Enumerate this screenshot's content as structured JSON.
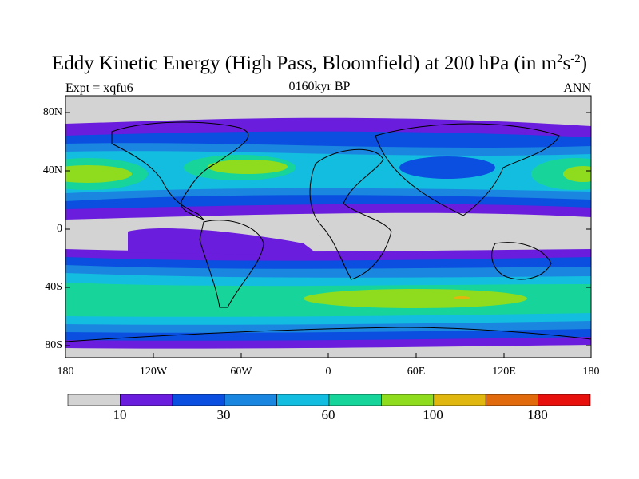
{
  "title": {
    "main": "Eddy Kinetic Energy (High Pass, Bloomfield) at 200 hPa (in m",
    "sup1": "2",
    "mid": "s",
    "sup2": "-2",
    "close": ")"
  },
  "subtitle": "0160kyr BP",
  "experiment": "Expt = xqfu6",
  "season": "ANN",
  "axes": {
    "y_ticks": [
      "80N",
      "40N",
      "0",
      "40S",
      "80S"
    ],
    "x_ticks": [
      "180",
      "120W",
      "60W",
      "0",
      "60E",
      "120E",
      "180"
    ]
  },
  "colorbar": {
    "colors": [
      "#d3d3d3",
      "#6a1ddc",
      "#0a4fe0",
      "#1b86e0",
      "#13bde0",
      "#17d59a",
      "#8fdc1e",
      "#e0b70f",
      "#e06a0c",
      "#e8100c"
    ],
    "labels": [
      "10",
      "30",
      "60",
      "100",
      "180"
    ]
  },
  "chart_data": {
    "type": "heatmap",
    "title": "Eddy Kinetic Energy (High Pass, Bloomfield) at 200 hPa (in m2s-2)",
    "x_range": [
      -180,
      180
    ],
    "y_range": [
      -90,
      90
    ],
    "levels": [
      10,
      20,
      30,
      40,
      60,
      80,
      100,
      140,
      180
    ]
  }
}
